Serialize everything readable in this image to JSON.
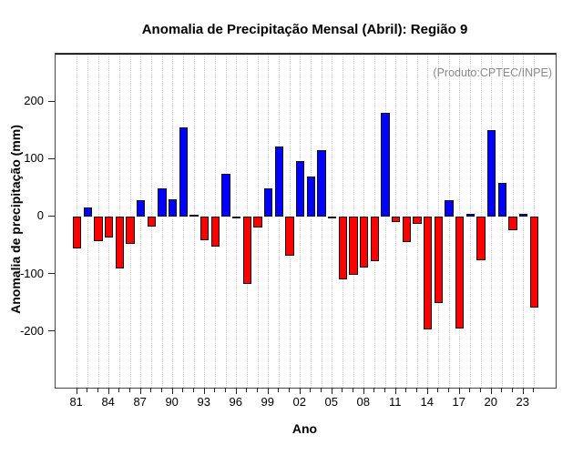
{
  "chart_data": {
    "type": "bar",
    "title": "Anomalia de Precipitação Mensal (Abril): Região 9",
    "xlabel": "Ano",
    "ylabel": "Anomalia de precipitação (mm)",
    "annotation": "(Produto:CPTEC/INPE)",
    "categories": [
      "81",
      "82",
      "83",
      "84",
      "85",
      "86",
      "87",
      "88",
      "89",
      "90",
      "91",
      "92",
      "93",
      "94",
      "95",
      "96",
      "97",
      "98",
      "99",
      "00",
      "01",
      "02",
      "03",
      "04",
      "05",
      "06",
      "07",
      "08",
      "09",
      "10",
      "11",
      "12",
      "13",
      "14",
      "15",
      "16",
      "17",
      "18",
      "19",
      "20",
      "21",
      "22",
      "23",
      "24"
    ],
    "values": [
      -55,
      15,
      -43,
      -37,
      -90,
      -48,
      28,
      -18,
      49,
      30,
      155,
      3,
      -41,
      -53,
      74,
      -4,
      -117,
      -19,
      49,
      121,
      -68,
      96,
      70,
      115,
      -4,
      -110,
      -102,
      -89,
      -78,
      180,
      -10,
      -44,
      -13,
      -197,
      -150,
      29,
      -195,
      4,
      -76,
      150,
      58,
      -24,
      5,
      -158
    ],
    "yticks": [
      200,
      100,
      0,
      -100,
      -200
    ],
    "xtick_labels": [
      "81",
      "84",
      "87",
      "90",
      "93",
      "96",
      "99",
      "02",
      "05",
      "08",
      "11",
      "14",
      "17",
      "20",
      "23"
    ],
    "xtick_label_every": 3,
    "ylim": [
      -298,
      284
    ],
    "grid": "vertical-dotted-per-year",
    "legend_position": "none",
    "colors": {
      "positive": "#0000ff",
      "negative": "#ff0000",
      "bar_border": "#111111",
      "grid": "#d4d4d4",
      "annotation": "#888888",
      "axis": "#222222"
    }
  }
}
